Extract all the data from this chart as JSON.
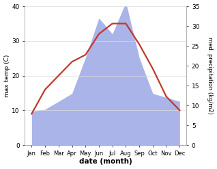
{
  "months": [
    "Jan",
    "Feb",
    "Mar",
    "Apr",
    "May",
    "Jun",
    "Jul",
    "Aug",
    "Sep",
    "Oct",
    "Nov",
    "Dec"
  ],
  "month_x": [
    0,
    1,
    2,
    3,
    4,
    5,
    6,
    7,
    8,
    9,
    10,
    11
  ],
  "temp_max": [
    9.0,
    16.0,
    20.0,
    24.0,
    26.0,
    32.0,
    35.0,
    35.0,
    29.0,
    22.0,
    14.0,
    10.0
  ],
  "precip": [
    8.5,
    9.0,
    11.0,
    13.0,
    22.0,
    32.0,
    28.0,
    36.0,
    22.0,
    13.0,
    12.0,
    11.0
  ],
  "temp_ylim": [
    0,
    40
  ],
  "precip_ylim": [
    0,
    35
  ],
  "temp_color": "#c0392b",
  "precip_fill_color": "#aab4e8",
  "ylabel_left": "max temp (C)",
  "ylabel_right": "med. precipitation (kg/m2)",
  "xlabel": "date (month)",
  "bg_color": "#ffffff",
  "temp_linewidth": 1.6,
  "yticks_left": [
    0,
    10,
    20,
    30,
    40
  ],
  "yticks_right": [
    0,
    5,
    10,
    15,
    20,
    25,
    30,
    35
  ],
  "grid_color": "#dddddd",
  "spine_color": "#aaaaaa"
}
